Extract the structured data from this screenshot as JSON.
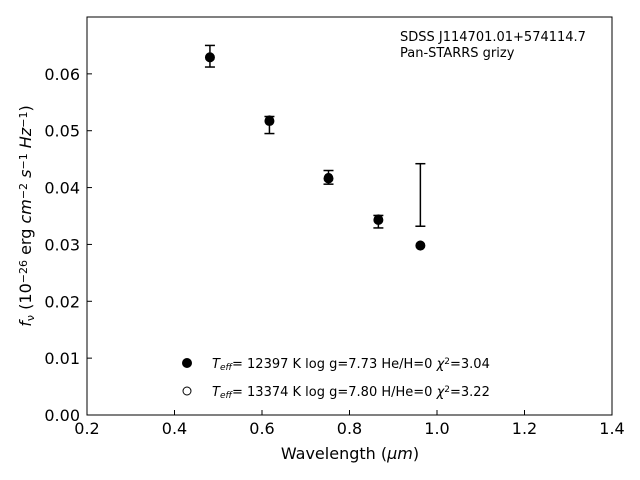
{
  "chart_data": {
    "type": "scatter",
    "title": "",
    "xlabel": "Wavelength (",
    "xlabel_unit": "μm",
    "xlabel_close": ")",
    "ylabel_parts": [
      "f",
      "ν",
      " (10",
      "−26",
      " erg ",
      "cm",
      "−2",
      " ",
      "s",
      "−1",
      " ",
      "Hz",
      "−1",
      ")"
    ],
    "xlim": [
      0.2,
      1.4
    ],
    "ylim": [
      0.0,
      0.07
    ],
    "xticks": [
      0.2,
      0.4,
      0.6,
      0.8,
      1.0,
      1.2,
      1.4
    ],
    "xtick_labels": [
      "0.2",
      "0.4",
      "0.6",
      "0.8",
      "1.0",
      "1.2",
      "1.4"
    ],
    "yticks": [
      0.0,
      0.01,
      0.02,
      0.03,
      0.04,
      0.05,
      0.06
    ],
    "ytick_labels": [
      "0.00",
      "0.01",
      "0.02",
      "0.03",
      "0.04",
      "0.05",
      "0.06"
    ],
    "grid": false,
    "annotation": [
      "SDSS J114701.01+574114.7",
      "Pan-STARRS grizy"
    ],
    "observed": {
      "x": [
        0.481,
        0.617,
        0.752,
        0.866,
        0.962
      ],
      "y": [
        0.0631,
        0.051,
        0.0418,
        0.034,
        0.0387
      ],
      "err": [
        0.0019,
        0.0015,
        0.0012,
        0.0011,
        0.0055
      ]
    },
    "series": [
      {
        "marker": "filled-circle",
        "x": [
          0.481,
          0.617,
          0.752,
          0.866,
          0.962
        ],
        "y": [
          0.0629,
          0.0517,
          0.0416,
          0.0343,
          0.0298
        ],
        "legend": {
          "T": "T",
          "eff": "eff",
          "text": "= 12397 K  log g=7.73  He/H=0  ",
          "chi": "χ",
          "sq": "2",
          "chival": "=3.04"
        }
      },
      {
        "marker": "open-circle",
        "x": [
          0.481,
          0.617,
          0.752,
          0.866,
          0.962
        ],
        "y": [
          0.063,
          0.0519,
          0.0418,
          0.0345,
          0.0299
        ],
        "legend": {
          "T": "T",
          "eff": "eff",
          "text": "= 13374 K  log g=7.80  H/He=0  ",
          "chi": "χ",
          "sq": "2",
          "chival": "=3.22"
        }
      }
    ],
    "legend_position": "lower-center"
  }
}
